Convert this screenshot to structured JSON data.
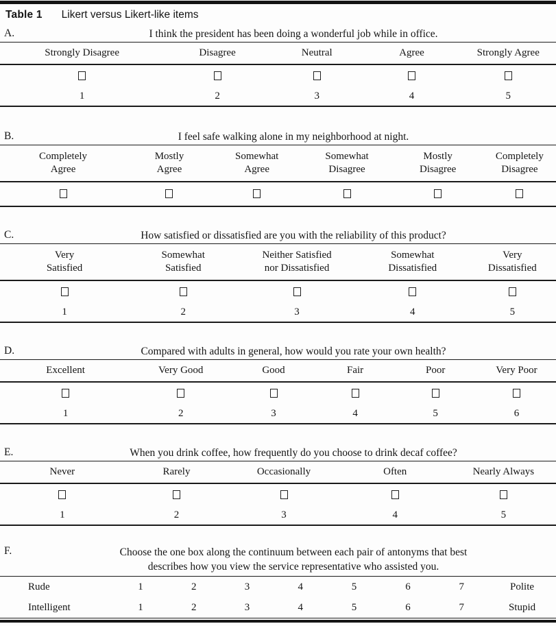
{
  "caption": {
    "label": "Table 1",
    "title": "Likert versus Likert-like items"
  },
  "colors": {
    "text": "#141414",
    "rule": "#1a1a1a",
    "background": "#fdfdfd"
  },
  "icons": {
    "checkbox": "empty-square-outline"
  },
  "sections": [
    {
      "id": "A.",
      "question": "I think the president has been doing a wonderful job while in office.",
      "options": [
        "Strongly Disagree",
        "Disagree",
        "Neutral",
        "Agree",
        "Strongly Agree"
      ],
      "numbers": [
        "1",
        "2",
        "3",
        "4",
        "5"
      ]
    },
    {
      "id": "B.",
      "question": "I feel safe walking alone in my neighborhood at night.",
      "options": [
        "Completely\nAgree",
        "Mostly\nAgree",
        "Somewhat\nAgree",
        "Somewhat\nDisagree",
        "Mostly\nDisagree",
        "Completely\nDisagree"
      ],
      "numbers": []
    },
    {
      "id": "C.",
      "question": "How satisfied or dissatisfied are you with the reliability of this product?",
      "options": [
        "Very\nSatisfied",
        "Somewhat\nSatisfied",
        "Neither Satisfied\nnor Dissatisfied",
        "Somewhat\nDissatisfied",
        "Very\nDissatisfied"
      ],
      "numbers": [
        "1",
        "2",
        "3",
        "4",
        "5"
      ]
    },
    {
      "id": "D.",
      "question": "Compared with adults in general, how would you rate your own health?",
      "options": [
        "Excellent",
        "Very Good",
        "Good",
        "Fair",
        "Poor",
        "Very Poor"
      ],
      "numbers": [
        "1",
        "2",
        "3",
        "4",
        "5",
        "6"
      ]
    },
    {
      "id": "E.",
      "question": "When you drink coffee, how frequently do you choose to drink decaf coffee?",
      "options": [
        "Never",
        "Rarely",
        "Occasionally",
        "Often",
        "Nearly Always"
      ],
      "numbers": [
        "1",
        "2",
        "3",
        "4",
        "5"
      ]
    },
    {
      "id": "F.",
      "question": "Choose the one box along the continuum between each pair of antonyms that best\ndescribes how you view the service representative who assisted you.",
      "rows": [
        {
          "left": "Rude",
          "scale": [
            "1",
            "2",
            "3",
            "4",
            "5",
            "6",
            "7"
          ],
          "right": "Polite"
        },
        {
          "left": "Intelligent",
          "scale": [
            "1",
            "2",
            "3",
            "4",
            "5",
            "6",
            "7"
          ],
          "right": "Stupid"
        }
      ]
    }
  ]
}
